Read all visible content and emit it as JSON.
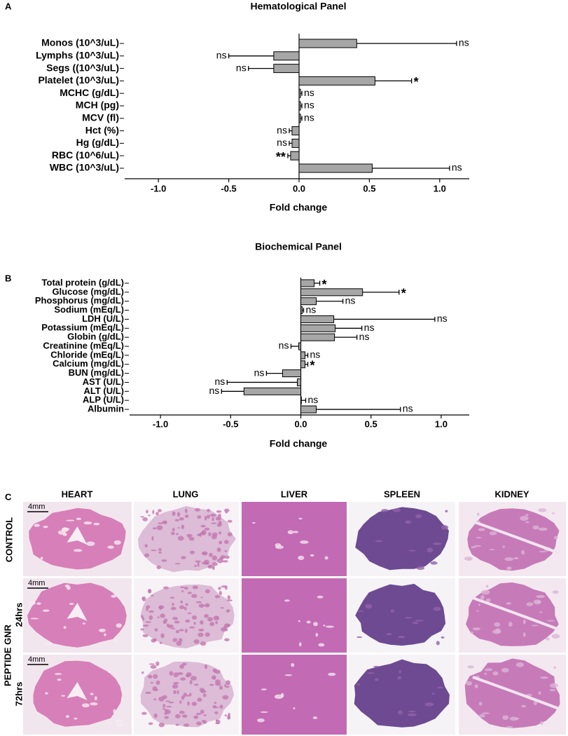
{
  "chart_data": [
    {
      "type": "bar",
      "orientation": "horizontal",
      "panel_label": "A",
      "title": "Hematological Panel",
      "xlabel": "Fold change",
      "categories": [
        "Monos (10^3/uL)",
        "Lymphs (10^3/uL)",
        "Segs ((10^3/uL)",
        "Platelet (10^3/uL)",
        "MCHC (g/dL)",
        "MCH (pg)",
        "MCV (fl)",
        "Hct (%)",
        "Hg (g/dL)",
        "RBC (10^6/uL)",
        "WBC (10^3/uL)"
      ],
      "values": [
        0.41,
        -0.18,
        -0.18,
        0.54,
        0.01,
        0.01,
        0.01,
        -0.05,
        -0.05,
        -0.06,
        0.52
      ],
      "errors": [
        0.71,
        0.32,
        0.18,
        0.26,
        0.01,
        0.01,
        0.01,
        0.02,
        0.02,
        0.02,
        0.55
      ],
      "annotations": [
        "ns",
        "ns",
        "ns",
        "*",
        "ns",
        "ns",
        "ns",
        "ns",
        "ns",
        "**",
        "ns"
      ],
      "color": "#a6a6a6",
      "xlim": [
        -1.24,
        1.21
      ],
      "xticks": [
        {
          "value": -1,
          "label": "-1.0"
        },
        -0.5,
        {
          "value": 0,
          "label": "0.0"
        },
        0.5,
        {
          "value": 1,
          "label": "1.0"
        }
      ]
    },
    {
      "type": "bar",
      "orientation": "horizontal",
      "panel_label": "B",
      "title": "Biochemical Panel",
      "xlabel": "Fold change",
      "categories": [
        "Total protein (g/dL)",
        "Glucose (mg/dL)",
        "Phosphorus (mg/dL)",
        "Sodium (mEq/L)",
        "LDH (U/L)",
        "Potassium (mEq/L)",
        "Globin (g/dL)",
        "Creatinine (mEq/L)",
        "Chloride (mEq/L)",
        "Calcium (mg/dL)",
        "BUN (mg/dL)",
        "AST (U/L)",
        "ALT (U/L)",
        "ALP (U/L)",
        "Albumin"
      ],
      "values": [
        0.095,
        0.44,
        0.11,
        0.01,
        0.235,
        0.245,
        0.24,
        -0.015,
        0.03,
        0.03,
        -0.13,
        -0.025,
        -0.405,
        0.0,
        0.11
      ],
      "errors": [
        0.04,
        0.26,
        0.19,
        0.01,
        0.72,
        0.19,
        0.16,
        0.055,
        0.02,
        0.02,
        0.115,
        0.5,
        0.16,
        0.035,
        0.6
      ],
      "annotations": [
        "*",
        "*",
        "ns",
        "ns",
        "ns",
        "ns",
        "ns",
        "ns",
        "ns",
        "*",
        "ns",
        "ns",
        "ns",
        "ns",
        "ns"
      ],
      "color": "#a6a6a6",
      "xlim": [
        -1.22,
        1.2
      ],
      "xticks": [
        {
          "value": -1,
          "label": "-1.0"
        },
        -0.5,
        {
          "value": 0,
          "label": "0.0"
        },
        0.5,
        {
          "value": 1,
          "label": "1.0"
        }
      ]
    }
  ],
  "histology": {
    "panel_label": "C",
    "columns": [
      "HEART",
      "LUNG",
      "LIVER",
      "SPLEEN",
      "KIDNEY"
    ],
    "row_labels": [
      "CONTROL",
      "24hrs",
      "72hrs"
    ],
    "group_label": "PEPTIDE GNR",
    "scale_bar": "4mm"
  }
}
